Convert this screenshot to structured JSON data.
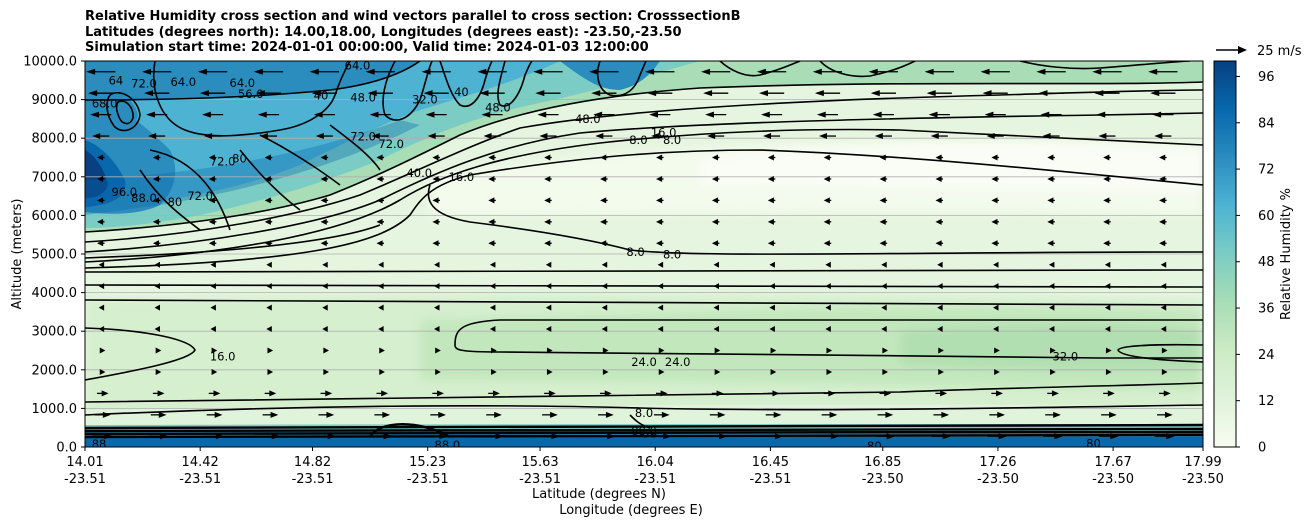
{
  "title_lines": [
    "Relative Humidity cross section and wind vectors parallel to cross section: CrosssectionB",
    "Latitudes (degrees north): 14.00,18.00, Longitudes (degrees east): -23.50,-23.50",
    "Simulation start time: 2024-01-01 00:00:00, Valid time: 2024-01-03 12:00:00"
  ],
  "chart_data": {
    "type": "contour-cross-section",
    "variable": "Relative Humidity",
    "xlabel_line1": "Latitude (degrees N)",
    "xlabel_line2": "Longitude (degrees E)",
    "ylabel": "Altitude (meters)",
    "ylim": [
      0,
      10000
    ],
    "yticks": [
      "0.0",
      "1000.0",
      "2000.0",
      "3000.0",
      "4000.0",
      "5000.0",
      "6000.0",
      "7000.0",
      "8000.0",
      "9000.0",
      "10000.0"
    ],
    "xlim": [
      14.01,
      17.99
    ],
    "xticks": [
      {
        "lat": "14.01",
        "lon": "-23.51",
        "v": 14.01
      },
      {
        "lat": "14.42",
        "lon": "-23.51",
        "v": 14.42
      },
      {
        "lat": "14.82",
        "lon": "-23.51",
        "v": 14.82
      },
      {
        "lat": "15.23",
        "lon": "-23.51",
        "v": 15.23
      },
      {
        "lat": "15.63",
        "lon": "-23.51",
        "v": 15.63
      },
      {
        "lat": "16.04",
        "lon": "-23.51",
        "v": 16.04
      },
      {
        "lat": "16.45",
        "lon": "-23.51",
        "v": 16.45
      },
      {
        "lat": "16.85",
        "lon": "-23.50",
        "v": 16.85
      },
      {
        "lat": "17.26",
        "lon": "-23.50",
        "v": 17.26
      },
      {
        "lat": "17.67",
        "lon": "-23.50",
        "v": 17.67
      },
      {
        "lat": "17.99",
        "lon": "-23.50",
        "v": 17.99
      }
    ],
    "grid": "horizontal",
    "colorbar": {
      "label": "Relative Humidity %",
      "ticks": [
        "0",
        "12",
        "24",
        "36",
        "48",
        "60",
        "72",
        "84",
        "96"
      ],
      "range": [
        0,
        100
      ],
      "colormap": "GnBu",
      "colors": [
        "#f7fcf0",
        "#e0f3db",
        "#ccebc5",
        "#a8ddb5",
        "#7bccc4",
        "#4eb3d3",
        "#2b8cbe",
        "#0868ac",
        "#084081"
      ]
    },
    "wind_key": {
      "label": "25 m/s",
      "speed": 25
    },
    "contour_labels": [
      {
        "t": "64.0",
        "x": 14.36,
        "y": 9450
      },
      {
        "t": "64.0",
        "x": 14.57,
        "y": 9430
      },
      {
        "t": "64.0",
        "x": 14.98,
        "y": 9880
      },
      {
        "t": "72.0",
        "x": 14.22,
        "y": 9420
      },
      {
        "t": "64",
        "x": 14.12,
        "y": 9500
      },
      {
        "t": "68.0",
        "x": 14.08,
        "y": 8900
      },
      {
        "t": "56.0",
        "x": 14.6,
        "y": 9150
      },
      {
        "t": "40",
        "x": 14.85,
        "y": 9100
      },
      {
        "t": "48.0",
        "x": 15.0,
        "y": 9050
      },
      {
        "t": "32.0",
        "x": 15.22,
        "y": 9000
      },
      {
        "t": "40",
        "x": 15.35,
        "y": 9200
      },
      {
        "t": "48.0",
        "x": 15.48,
        "y": 8800
      },
      {
        "t": "72.0",
        "x": 15.0,
        "y": 8050
      },
      {
        "t": "72.0",
        "x": 15.1,
        "y": 7850
      },
      {
        "t": "72.0",
        "x": 14.5,
        "y": 7400
      },
      {
        "t": "80",
        "x": 14.56,
        "y": 7480
      },
      {
        "t": "40.0",
        "x": 15.2,
        "y": 7100
      },
      {
        "t": "16.0",
        "x": 15.35,
        "y": 7000
      },
      {
        "t": "96.0",
        "x": 14.15,
        "y": 6600
      },
      {
        "t": "88.0",
        "x": 14.22,
        "y": 6450
      },
      {
        "t": "80",
        "x": 14.33,
        "y": 6350
      },
      {
        "t": "72.0",
        "x": 14.42,
        "y": 6500
      },
      {
        "t": "48.0",
        "x": 15.8,
        "y": 8500
      },
      {
        "t": "16.0",
        "x": 16.07,
        "y": 8150
      },
      {
        "t": "8.0",
        "x": 15.98,
        "y": 7950
      },
      {
        "t": "8.0",
        "x": 16.1,
        "y": 7950
      },
      {
        "t": "8.0",
        "x": 15.97,
        "y": 5050
      },
      {
        "t": "8.0",
        "x": 16.1,
        "y": 4990
      },
      {
        "t": "16.0",
        "x": 14.5,
        "y": 2350
      },
      {
        "t": "24.0",
        "x": 16.0,
        "y": 2200
      },
      {
        "t": "24.0",
        "x": 16.12,
        "y": 2200
      },
      {
        "t": "32.0",
        "x": 17.5,
        "y": 2350
      },
      {
        "t": "88.0",
        "x": 15.3,
        "y": 50
      },
      {
        "t": "80",
        "x": 16.82,
        "y": 20
      },
      {
        "t": "80",
        "x": 17.6,
        "y": 90
      },
      {
        "t": "88",
        "x": 14.06,
        "y": 80
      },
      {
        "t": "56",
        "x": 16.02,
        "y": 350
      },
      {
        "t": "8.0",
        "x": 16.0,
        "y": 880
      },
      {
        "t": "88.0",
        "x": 16.0,
        "y": 420
      }
    ]
  }
}
